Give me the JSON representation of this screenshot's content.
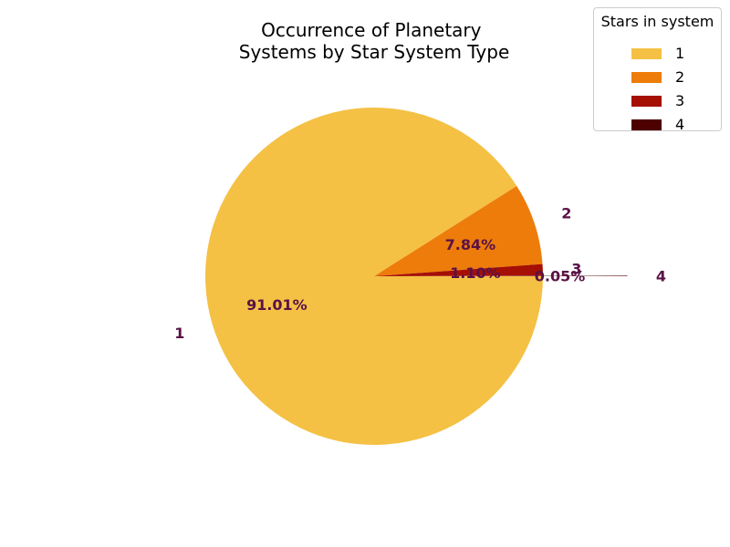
{
  "chart_data": {
    "type": "pie",
    "title": [
      "Occurrence of Planetary",
      "Systems by Star System Type"
    ],
    "legend_title": "Stars in system",
    "legend_position": "top-right",
    "slices": [
      {
        "label": "1",
        "value": 91.01,
        "pct_label": "91.01%",
        "color": "#f4c145"
      },
      {
        "label": "2",
        "value": 7.84,
        "pct_label": "7.84%",
        "color": "#ed7c0a"
      },
      {
        "label": "3",
        "value": 1.1,
        "pct_label": "1.10%",
        "color": "#a50f04"
      },
      {
        "label": "4",
        "value": 0.05,
        "pct_label": "0.05%",
        "color": "#4d0000"
      }
    ]
  }
}
